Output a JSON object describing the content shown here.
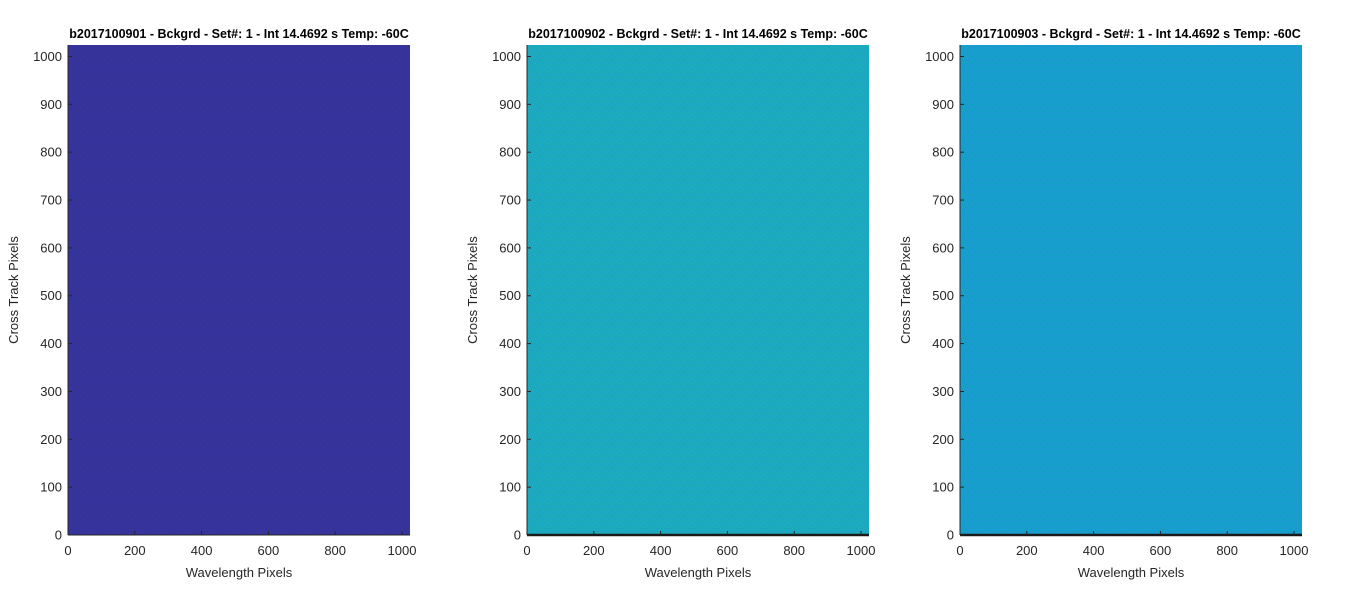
{
  "chart_data": [
    {
      "type": "heatmap",
      "title": "b2017100901 - Bckgrd - Set#: 1 - Int 14.4692 s Temp: -60C",
      "xlabel": "Wavelength Pixels",
      "ylabel": "Cross Track Pixels",
      "xlim": [
        0,
        1024
      ],
      "ylim": [
        0,
        1024
      ],
      "xticks": [
        0,
        200,
        400,
        600,
        800,
        1000
      ],
      "yticks": [
        0,
        100,
        200,
        300,
        400,
        500,
        600,
        700,
        800,
        900,
        1000
      ],
      "fill_color": "#35339a",
      "noise_color": "#3b3aa3",
      "bottom_line": false
    },
    {
      "type": "heatmap",
      "title": "b2017100902 - Bckgrd - Set#: 1 - Int 14.4692 s Temp: -60C",
      "xlabel": "Wavelength Pixels",
      "ylabel": "Cross Track Pixels",
      "xlim": [
        0,
        1024
      ],
      "ylim": [
        0,
        1024
      ],
      "xticks": [
        0,
        200,
        400,
        600,
        800,
        1000
      ],
      "yticks": [
        0,
        100,
        200,
        300,
        400,
        500,
        600,
        700,
        800,
        900,
        1000
      ],
      "fill_color": "#1ca7c0",
      "noise_color": "#22b3b8",
      "bottom_line": true
    },
    {
      "type": "heatmap",
      "title": "b2017100903 - Bckgrd - Set#: 1 - Int 14.4692 s Temp: -60C",
      "xlabel": "Wavelength Pixels",
      "ylabel": "Cross Track Pixels",
      "xlim": [
        0,
        1024
      ],
      "ylim": [
        0,
        1024
      ],
      "xticks": [
        0,
        200,
        400,
        600,
        800,
        1000
      ],
      "yticks": [
        0,
        100,
        200,
        300,
        400,
        500,
        600,
        700,
        800,
        900,
        1000
      ],
      "fill_color": "#18a0cc",
      "noise_color": "#1a92d0",
      "bottom_line": true
    }
  ]
}
